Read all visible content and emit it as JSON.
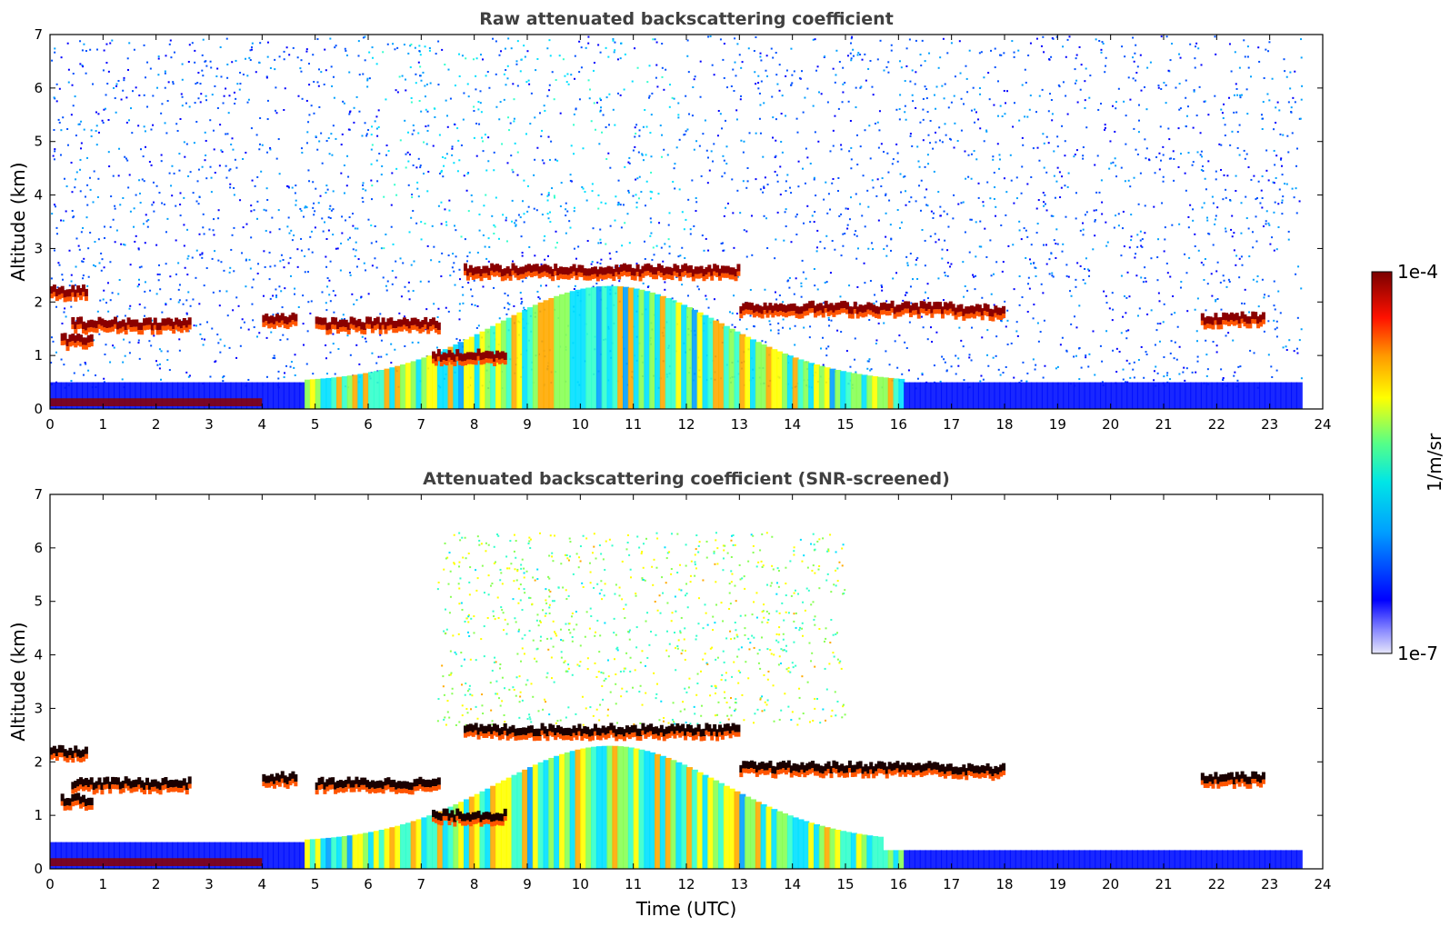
{
  "chart_data": [
    {
      "type": "heatmap",
      "title": "Raw attenuated backscattering coefficient",
      "xlabel": "",
      "ylabel": "Altitude (km)",
      "xlim": [
        0,
        24
      ],
      "ylim": [
        0,
        7
      ],
      "xticks": [
        "0",
        "1",
        "2",
        "3",
        "4",
        "5",
        "6",
        "7",
        "8",
        "9",
        "10",
        "11",
        "12",
        "13",
        "14",
        "15",
        "16",
        "17",
        "18",
        "19",
        "20",
        "21",
        "22",
        "23",
        "24"
      ],
      "yticks": [
        "0",
        "1",
        "2",
        "3",
        "4",
        "5",
        "6",
        "7"
      ],
      "screened": false,
      "features": {
        "cloud_layers": [
          {
            "t_start": 0.0,
            "t_end": 0.7,
            "altitude_km": 2.2
          },
          {
            "t_start": 0.2,
            "t_end": 0.8,
            "altitude_km": 1.3
          },
          {
            "t_start": 0.4,
            "t_end": 2.6,
            "altitude_km": 1.6
          },
          {
            "t_start": 4.0,
            "t_end": 4.6,
            "altitude_km": 1.7
          },
          {
            "t_start": 5.0,
            "t_end": 7.3,
            "altitude_km": 1.6
          },
          {
            "t_start": 7.2,
            "t_end": 8.6,
            "altitude_km": 1.0
          },
          {
            "t_start": 7.8,
            "t_end": 8.6,
            "altitude_km": 2.6
          },
          {
            "t_start": 8.6,
            "t_end": 13.0,
            "altitude_km": 2.6
          },
          {
            "t_start": 13.0,
            "t_end": 17.0,
            "altitude_km": 1.9
          },
          {
            "t_start": 17.0,
            "t_end": 18.0,
            "altitude_km": 1.85
          },
          {
            "t_start": 21.7,
            "t_end": 22.9,
            "altitude_km": 1.7
          }
        ],
        "boundary_layer_top_km": 0.5
      }
    },
    {
      "type": "heatmap",
      "title": "Attenuated backscattering coefficient (SNR-screened)",
      "xlabel": "Time (UTC)",
      "ylabel": "Altitude (km)",
      "xlim": [
        0,
        24
      ],
      "ylim": [
        0,
        7
      ],
      "xticks": [
        "0",
        "1",
        "2",
        "3",
        "4",
        "5",
        "6",
        "7",
        "8",
        "9",
        "10",
        "11",
        "12",
        "13",
        "14",
        "15",
        "16",
        "17",
        "18",
        "19",
        "20",
        "21",
        "22",
        "23",
        "24"
      ],
      "yticks": [
        "0",
        "1",
        "2",
        "3",
        "4",
        "5",
        "6",
        "7"
      ],
      "screened": true
    }
  ],
  "colorbar": {
    "label": "1/m/sr",
    "min_label": "1e-7",
    "max_label": "1e-4",
    "colormap": "jet",
    "colors": [
      "#e6e6fa",
      "#0000ff",
      "#00c8ff",
      "#33ffaa",
      "#ffff00",
      "#ff8800",
      "#ff0000",
      "#800000"
    ]
  }
}
